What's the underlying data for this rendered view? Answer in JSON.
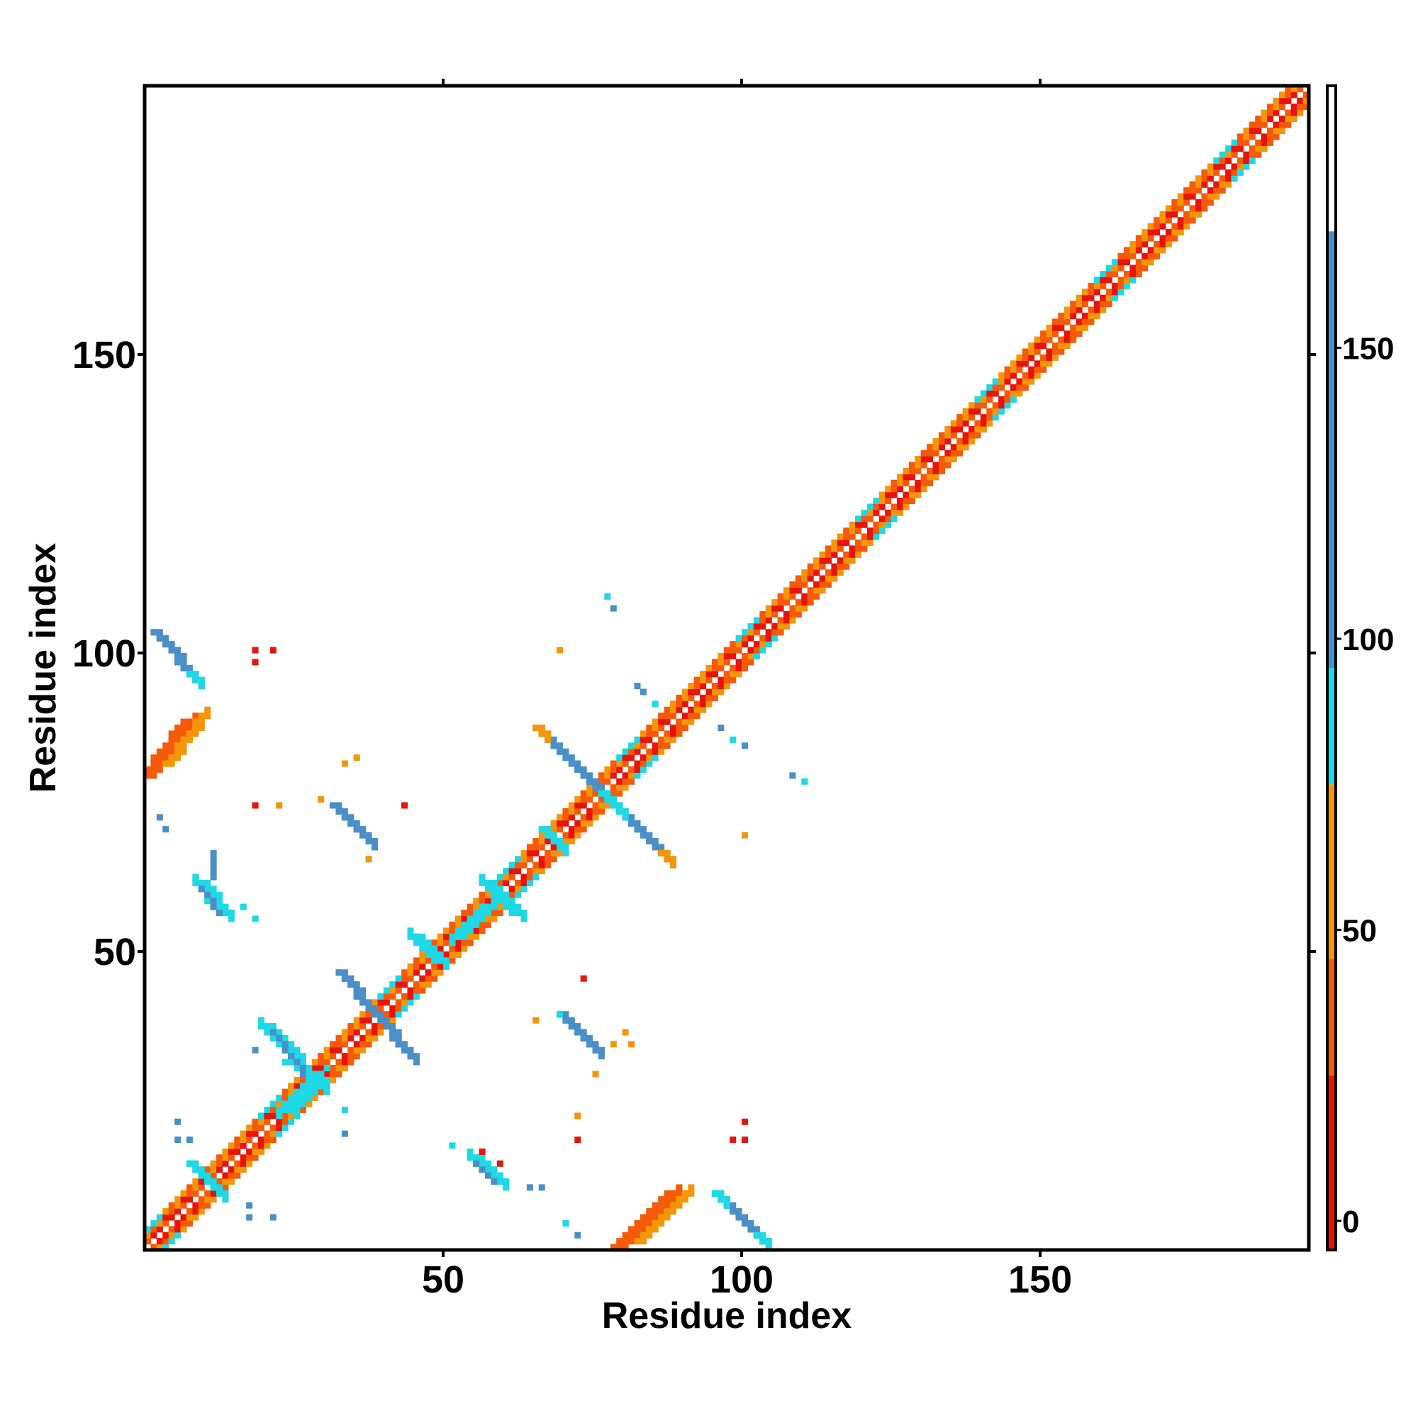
{
  "chart_data": {
    "type": "heatmap",
    "title": "",
    "xlabel": "Residue index",
    "ylabel": "Residue index",
    "xlim": [
      0,
      195
    ],
    "ylim": [
      0,
      195
    ],
    "xticks": [
      50,
      100,
      150
    ],
    "yticks": [
      50,
      100,
      150
    ],
    "xtick_labels": [
      "50",
      "100",
      "150"
    ],
    "ytick_labels": [
      "50",
      "100",
      "150"
    ],
    "grid": false,
    "colorbar": {
      "ticks": [
        0,
        50,
        100,
        150
      ],
      "tick_labels": [
        "0",
        "50",
        "100",
        "150"
      ],
      "range": [
        -5,
        195
      ],
      "bands": [
        {
          "from": -5,
          "to": 25,
          "color": "#e6140a"
        },
        {
          "from": 25,
          "to": 45,
          "color": "#f55a0a"
        },
        {
          "from": 45,
          "to": 75,
          "color": "#f5960a"
        },
        {
          "from": 75,
          "to": 95,
          "color": "#1ed8e6"
        },
        {
          "from": 95,
          "to": 170,
          "color": "#4a8fc7"
        },
        {
          "from": 170,
          "to": 195,
          "color": "#ffffff"
        }
      ]
    },
    "colors": {
      "red": "#e6140a",
      "orange_red": "#f55a0a",
      "orange": "#f5960a",
      "cyan": "#1ed8e6",
      "blue": "#4a8fc7"
    },
    "regions": [
      {
        "x1": 80,
        "y1": 1,
        "x2": 89,
        "y2": 10,
        "w": 3,
        "c": "orange_red"
      },
      {
        "x1": 83,
        "y1": 2,
        "x2": 91,
        "y2": 10,
        "w": 2,
        "c": "orange"
      },
      {
        "x1": 96,
        "y1": 10,
        "x2": 104,
        "y2": 2,
        "w": 2,
        "c": "blue"
      },
      {
        "x1": 96,
        "y1": 10,
        "x2": 97,
        "y2": 9,
        "w": 2,
        "c": "cyan"
      },
      {
        "x1": 103,
        "y1": 3,
        "x2": 104,
        "y2": 2,
        "w": 2,
        "c": "cyan"
      },
      {
        "x1": 1,
        "y1": 80,
        "x2": 8,
        "y2": 89,
        "w": 3,
        "c": "orange_red"
      },
      {
        "x1": 4,
        "y1": 82,
        "x2": 10,
        "y2": 90,
        "w": 2,
        "c": "orange"
      },
      {
        "x1": 2,
        "y1": 104,
        "x2": 9,
        "y2": 96,
        "w": 2,
        "c": "blue"
      },
      {
        "x1": 8,
        "y1": 97,
        "x2": 9,
        "y2": 96,
        "w": 2,
        "c": "cyan"
      },
      {
        "x1": 33,
        "y1": 47,
        "x2": 45,
        "y2": 33,
        "w": 2,
        "c": "blue"
      },
      {
        "x1": 66,
        "y1": 88,
        "x2": 79,
        "y2": 75,
        "w": 2,
        "c": "blue"
      },
      {
        "x1": 77,
        "y1": 77,
        "x2": 88,
        "y2": 66,
        "w": 2,
        "c": "blue"
      },
      {
        "x1": 77,
        "y1": 77,
        "x2": 80,
        "y2": 74,
        "w": 2,
        "c": "cyan"
      },
      {
        "x1": 66,
        "y1": 88,
        "x2": 67,
        "y2": 87,
        "w": 2,
        "c": "orange"
      },
      {
        "x1": 87,
        "y1": 67,
        "x2": 88,
        "y2": 66,
        "w": 2,
        "c": "orange"
      },
      {
        "x1": 32,
        "y1": 75,
        "x2": 38,
        "y2": 69,
        "w": 2,
        "c": "blue"
      },
      {
        "x1": 70,
        "y1": 40,
        "x2": 76,
        "y2": 34,
        "w": 2,
        "c": "blue"
      },
      {
        "x1": 70,
        "y1": 40,
        "x2": 70,
        "y2": 40,
        "w": 1,
        "c": "cyan"
      },
      {
        "x1": 56,
        "y1": 16,
        "x2": 60,
        "y2": 12,
        "w": 3,
        "c": "cyan"
      },
      {
        "x1": 56,
        "y1": 15,
        "x2": 59,
        "y2": 12,
        "w": 1,
        "c": "blue"
      },
      {
        "x1": 10,
        "y1": 62,
        "x2": 14,
        "y2": 57,
        "w": 3,
        "c": "cyan"
      },
      {
        "x1": 10,
        "y1": 61,
        "x2": 13,
        "y2": 57,
        "w": 1,
        "c": "blue"
      },
      {
        "x1": 12,
        "y1": 67,
        "x2": 12,
        "y2": 63,
        "w": 1,
        "c": "blue"
      },
      {
        "x1": 21,
        "y1": 38,
        "x2": 30,
        "y2": 28,
        "w": 3,
        "c": "cyan"
      },
      {
        "x1": 22,
        "y1": 37,
        "x2": 29,
        "y2": 28,
        "w": 1,
        "c": "blue"
      },
      {
        "x1": 46,
        "y1": 53,
        "x2": 50,
        "y2": 49,
        "w": 3,
        "c": "cyan"
      },
      {
        "x1": 58,
        "y1": 62,
        "x2": 63,
        "y2": 57,
        "w": 3,
        "c": "cyan"
      },
      {
        "x1": 67,
        "y1": 71,
        "x2": 70,
        "y2": 68,
        "w": 2,
        "c": "cyan"
      },
      {
        "x1": 8,
        "y1": 15,
        "x2": 13,
        "y2": 10,
        "w": 2,
        "c": "cyan"
      },
      {
        "x1": 53,
        "y1": 53,
        "x2": 58,
        "y2": 58,
        "w": 3,
        "c": "cyan"
      },
      {
        "x1": 24,
        "y1": 24,
        "x2": 29,
        "y2": 29,
        "w": 4,
        "c": "cyan"
      }
    ],
    "points": [
      [
        19,
        101,
        "red"
      ],
      [
        19,
        99,
        "red"
      ],
      [
        22,
        101,
        "red"
      ],
      [
        19,
        75,
        "red"
      ],
      [
        23,
        75,
        "orange"
      ],
      [
        30,
        76,
        "orange"
      ],
      [
        44,
        75,
        "red"
      ],
      [
        34,
        82,
        "orange"
      ],
      [
        36,
        83,
        "orange"
      ],
      [
        38,
        66,
        "orange"
      ],
      [
        3,
        73,
        "blue"
      ],
      [
        4,
        71,
        "blue"
      ],
      [
        17,
        58,
        "cyan"
      ],
      [
        19,
        56,
        "cyan"
      ],
      [
        70,
        101,
        "orange"
      ],
      [
        83,
        95,
        "blue"
      ],
      [
        84,
        94,
        "blue"
      ],
      [
        86,
        92,
        "cyan"
      ],
      [
        78,
        110,
        "cyan"
      ],
      [
        79,
        108,
        "blue"
      ],
      [
        97,
        88,
        "blue"
      ],
      [
        99,
        86,
        "cyan"
      ],
      [
        101,
        85,
        "blue"
      ],
      [
        109,
        80,
        "blue"
      ],
      [
        111,
        79,
        "cyan"
      ],
      [
        101,
        70,
        "orange"
      ],
      [
        74,
        46,
        "red"
      ],
      [
        66,
        39,
        "orange"
      ],
      [
        76,
        30,
        "orange"
      ],
      [
        81,
        37,
        "orange"
      ],
      [
        82,
        35,
        "orange"
      ],
      [
        79,
        35,
        "orange"
      ],
      [
        73,
        23,
        "orange"
      ],
      [
        73,
        19,
        "red"
      ],
      [
        99,
        19,
        "red"
      ],
      [
        101,
        19,
        "red"
      ],
      [
        101,
        22,
        "red"
      ],
      [
        71,
        5,
        "cyan"
      ],
      [
        73,
        3,
        "blue"
      ],
      [
        65,
        11,
        "blue"
      ],
      [
        67,
        11,
        "blue"
      ],
      [
        57,
        17,
        "red"
      ],
      [
        60,
        15,
        "red"
      ],
      [
        52,
        18,
        "cyan"
      ],
      [
        6,
        22,
        "blue"
      ],
      [
        6,
        19,
        "blue"
      ],
      [
        8,
        19,
        "blue"
      ],
      [
        18,
        8,
        "blue"
      ],
      [
        18,
        6,
        "blue"
      ],
      [
        22,
        6,
        "blue"
      ],
      [
        19,
        34,
        "blue"
      ],
      [
        24,
        32,
        "cyan"
      ],
      [
        34,
        24,
        "cyan"
      ],
      [
        34,
        20,
        "blue"
      ]
    ]
  }
}
